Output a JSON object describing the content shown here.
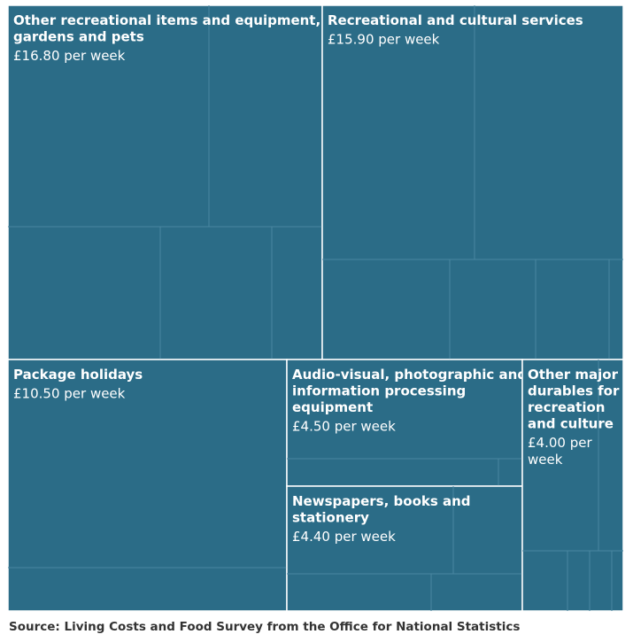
{
  "chart_data": {
    "type": "treemap",
    "unit": "£ per week",
    "categories": [
      {
        "label_lines": [
          "Other recreational items and equipment,",
          "gardens and pets"
        ],
        "value_text": "£16.80 per week",
        "value": 16.8
      },
      {
        "label_lines": [
          "Recreational and cultural services"
        ],
        "value_text": "£15.90 per week",
        "value": 15.9
      },
      {
        "label_lines": [
          "Package holidays"
        ],
        "value_text": "£10.50 per week",
        "value": 10.5
      },
      {
        "label_lines": [
          "Audio-visual, photographic and",
          "information processing",
          "equipment"
        ],
        "value_text": "£4.50 per week",
        "value": 4.5
      },
      {
        "label_lines": [
          "Newspapers, books and",
          "stationery"
        ],
        "value_text": "£4.40 per week",
        "value": 4.4
      },
      {
        "label_lines": [
          "Other major",
          "durables for",
          "recreation",
          "and culture"
        ],
        "value_text_lines": [
          "£4.00 per",
          "week"
        ],
        "value": 4.0
      }
    ]
  },
  "source": "Source: Living Costs and Food Survey from the Office for National Statistics",
  "colors": {
    "tile": "#2b6c87",
    "border": "#ffffff",
    "sub_border": "#4a86a0"
  }
}
